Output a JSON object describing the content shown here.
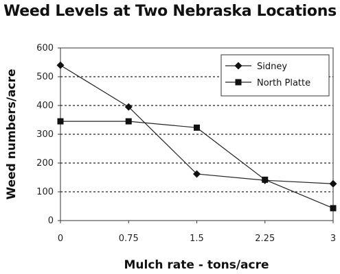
{
  "chart_data": {
    "type": "line",
    "title": "Weed Levels at Two Nebraska Locations",
    "xlabel": "Mulch rate - tons/acre",
    "ylabel": "Weed numbers/acre",
    "x": [
      0,
      0.75,
      1.5,
      2.25,
      3
    ],
    "x_tick_labels": [
      "0",
      "0.75",
      "1.5",
      "2.25",
      "3"
    ],
    "y_ticks": [
      0,
      100,
      200,
      300,
      400,
      500,
      600
    ],
    "ylim": [
      0,
      600
    ],
    "grid": "horizontal dashed",
    "legend_position": "top-right",
    "series": [
      {
        "name": "Sidney",
        "marker": "diamond",
        "values": [
          540,
          395,
          162,
          140,
          128
        ]
      },
      {
        "name": "North Platte",
        "marker": "square",
        "values": [
          345,
          345,
          323,
          142,
          43
        ]
      }
    ]
  }
}
